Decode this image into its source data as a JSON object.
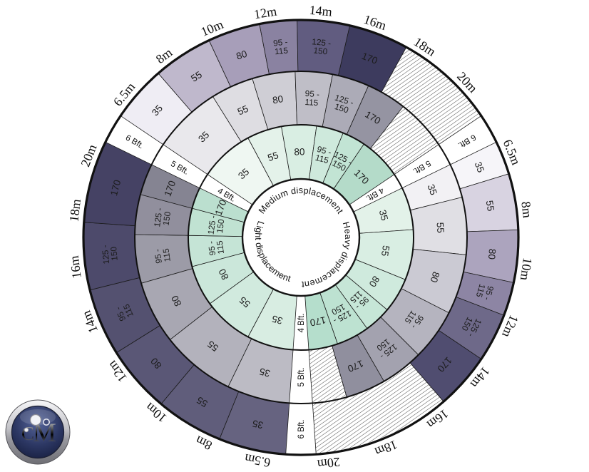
{
  "chart_data": {
    "type": "heatmap",
    "title": "",
    "layout": "radial wheel: 3 displacement sectors x 3 wind-force rings; cells ordered by increasing boat length (clockwise)",
    "wind_force_rings_inner_to_outer": [
      "4 Bft.",
      "5 Bft.",
      "6 Bft."
    ],
    "boat_length_labels_per_sector": [
      "6.5m",
      "8m",
      "10m",
      "12m",
      "14m",
      "16m",
      "18m",
      "20m"
    ],
    "value_scale": [
      "35",
      "55",
      "80",
      "95 - 115",
      "125 - 150",
      "170"
    ],
    "sectors": [
      {
        "name": "Medium displacement",
        "rings": [
          {
            "wind": "4 Bft.",
            "values": [
              "35",
              "55",
              "80",
              "95 - 115",
              "125 - 150",
              "170"
            ]
          },
          {
            "wind": "5 Bft.",
            "values": [
              "35",
              "55",
              "80",
              "95 - 115",
              "125 - 150",
              "170",
              "hatched"
            ]
          },
          {
            "wind": "6 Bft.",
            "values": [
              "35",
              "55",
              "80",
              "95 - 115",
              "125 - 150",
              "170",
              "hatched"
            ]
          }
        ]
      },
      {
        "name": "Heavy displacement",
        "rings": [
          {
            "wind": "4 Bft.",
            "values": [
              "35",
              "55",
              "80",
              "95 - 115",
              "125 - 150",
              "170"
            ]
          },
          {
            "wind": "5 Bft.",
            "values": [
              "35",
              "55",
              "80",
              "95 - 115",
              "125 - 150",
              "170",
              "hatched"
            ]
          },
          {
            "wind": "6 Bft.",
            "values": [
              "35",
              "55",
              "80",
              "95 - 115",
              "125 - 150",
              "170",
              "hatched"
            ]
          }
        ]
      },
      {
        "name": "Light displacement",
        "rings": [
          {
            "wind": "4 Bft.",
            "values": [
              "35",
              "55",
              "80",
              "95 - 115",
              "125 - 150",
              "170"
            ]
          },
          {
            "wind": "5 Bft.",
            "values": [
              "35",
              "55",
              "80",
              "95 - 115",
              "125 - 150",
              "170"
            ]
          },
          {
            "wind": "6 Bft.",
            "values": [
              "35",
              "55",
              "80",
              "95 - 115",
              "125 - 150",
              "170"
            ]
          }
        ]
      }
    ]
  },
  "wheel": {
    "wind_labels": [
      "4 Bft.",
      "5 Bft.",
      "6 Bft."
    ],
    "length_labels": [
      "6.5m",
      "8m",
      "10m",
      "12m",
      "14m",
      "16m",
      "18m",
      "20m"
    ],
    "center_labels": {
      "medium": "Medium displacement",
      "heavy": "Heavy displacement",
      "light": "Light displacement"
    },
    "sectors": [
      {
        "key": "medium",
        "title": "Medium displacement",
        "start": -56,
        "rings": [
          {
            "wind": "4 Bft.",
            "cells": [
              {
                "v": "35",
                "w": 28,
                "c": "#EFF7F2"
              },
              {
                "v": "55",
                "w": 18,
                "c": "#E4F2EA"
              },
              {
                "v": "80",
                "w": 18,
                "c": "#D9EEE3"
              },
              {
                "v": "95 - 115",
                "w": 14,
                "c": "#CEE9DC"
              },
              {
                "v": "125 - 150",
                "w": 12,
                "c": "#C2E4D4"
              },
              {
                "v": "170",
                "w": 22,
                "c": "#B4DBC9"
              }
            ]
          },
          {
            "wind": "5 Bft.",
            "cells": [
              {
                "v": "35",
                "w": 24,
                "c": "#E9E8EC"
              },
              {
                "v": "55",
                "w": 15,
                "c": "#DEDDE2"
              },
              {
                "v": "80",
                "w": 15,
                "c": "#CFCED5"
              },
              {
                "v": "95 - 115",
                "w": 13,
                "c": "#BFBEC7"
              },
              {
                "v": "125 - 150",
                "w": 13,
                "c": "#ACABB7"
              },
              {
                "v": "170",
                "w": 14,
                "c": "#9594A2"
              },
              {
                "h": true,
                "w": 18
              }
            ]
          },
          {
            "wind": "6 Bft.",
            "cells": [
              {
                "v": "35",
                "w": 15,
                "c": "#EFEDF4"
              },
              {
                "v": "55",
                "w": 16,
                "c": "#BFB8CC"
              },
              {
                "v": "80",
                "w": 14,
                "c": "#A79EB9"
              },
              {
                "v": "95 - 115",
                "w": 10,
                "c": "#8A82A1"
              },
              {
                "v": "125 - 150",
                "w": 14,
                "c": "#615C80"
              },
              {
                "v": "170",
                "w": 16,
                "c": "#3D3B5E"
              },
              {
                "h": true,
                "w": 27
              }
            ]
          }
        ]
      },
      {
        "key": "heavy",
        "title": "Heavy displacement",
        "start": 64,
        "rings": [
          {
            "wind": "4 Bft.",
            "cells": [
              {
                "v": "35",
                "w": 22,
                "c": "#E3F2E9"
              },
              {
                "v": "55",
                "w": 26,
                "c": "#D9EEE3"
              },
              {
                "v": "80",
                "w": 18,
                "c": "#CFEADD"
              },
              {
                "v": "95 - 115",
                "w": 14,
                "c": "#C6E6D7"
              },
              {
                "v": "125 - 150",
                "w": 17,
                "c": "#BDE2D1"
              },
              {
                "v": "170",
                "w": 15,
                "c": "#B5DECC"
              }
            ]
          },
          {
            "wind": "5 Bft.",
            "cells": [
              {
                "v": "35",
                "w": 12,
                "c": "#F2F1F4"
              },
              {
                "v": "55",
                "w": 20,
                "c": "#E0DFE4"
              },
              {
                "v": "80",
                "w": 21,
                "c": "#CBCAD3"
              },
              {
                "v": "95 - 115",
                "w": 18,
                "c": "#B5B4BF"
              },
              {
                "v": "125 - 150",
                "w": 15,
                "c": "#A3A2AF"
              },
              {
                "v": "170",
                "w": 14,
                "c": "#908F9E"
              },
              {
                "h": true,
                "w": 12
              }
            ]
          },
          {
            "wind": "6 Bft.",
            "cells": [
              {
                "v": "35",
                "w": 9,
                "c": "#F6F5F9"
              },
              {
                "v": "55",
                "w": 15,
                "c": "#D8D3E1"
              },
              {
                "v": "80",
                "w": 14,
                "c": "#ACA4BE"
              },
              {
                "v": "95 - 115",
                "w": 9,
                "c": "#8D85A4"
              },
              {
                "v": "125 - 150",
                "w": 13,
                "c": "#6E6989"
              },
              {
                "v": "170",
                "w": 15,
                "c": "#504D70"
              },
              {
                "h": true,
                "w": 37
              }
            ]
          }
        ]
      },
      {
        "key": "light",
        "title": "Light displacement",
        "start": 184,
        "rings": [
          {
            "wind": "4 Bft.",
            "cells": [
              {
                "v": "35",
                "w": 24,
                "c": "#D8EDE2"
              },
              {
                "v": "55",
                "w": 26,
                "c": "#D1EADE"
              },
              {
                "v": "80",
                "w": 21,
                "c": "#CBE7DA"
              },
              {
                "v": "95 - 115",
                "w": 16,
                "c": "#C5E4D6"
              },
              {
                "v": "125 - 150",
                "w": 14,
                "c": "#C0E2D2"
              },
              {
                "v": "170",
                "w": 11,
                "c": "#BBDFCF"
              }
            ]
          },
          {
            "wind": "5 Bft.",
            "cells": [
              {
                "v": "35",
                "w": 22,
                "c": "#BCBBC4"
              },
              {
                "v": "55",
                "w": 26,
                "c": "#B3B2BC"
              },
              {
                "v": "80",
                "w": 22,
                "c": "#A8A7B2"
              },
              {
                "v": "95 - 115",
                "w": 17,
                "c": "#9C9BA7"
              },
              {
                "v": "125 - 150",
                "w": 14,
                "c": "#918F9D"
              },
              {
                "v": "170",
                "w": 11,
                "c": "#858492"
              }
            ]
          },
          {
            "wind": "6 Bft.",
            "cells": [
              {
                "v": "35",
                "w": 18,
                "c": "#666380"
              },
              {
                "v": "55",
                "w": 18,
                "c": "#605D7B"
              },
              {
                "v": "80",
                "w": 18,
                "c": "#5A5776"
              },
              {
                "v": "95 - 115",
                "w": 18,
                "c": "#545170"
              },
              {
                "v": "125 - 150",
                "w": 18,
                "c": "#4D4A6B"
              },
              {
                "v": "170",
                "w": 22,
                "c": "#454264"
              }
            ]
          }
        ]
      }
    ]
  },
  "logo": {
    "text": "CM"
  },
  "colors": {
    "hatch_line": "#4a4a4a",
    "outline": "#111111",
    "mint_ring": "#CDE8DB",
    "gray_ring": "#ACABB7",
    "purple_ring": "#545170",
    "logo_navy": "#2c3763",
    "logo_silver": "#c2c2c7"
  }
}
